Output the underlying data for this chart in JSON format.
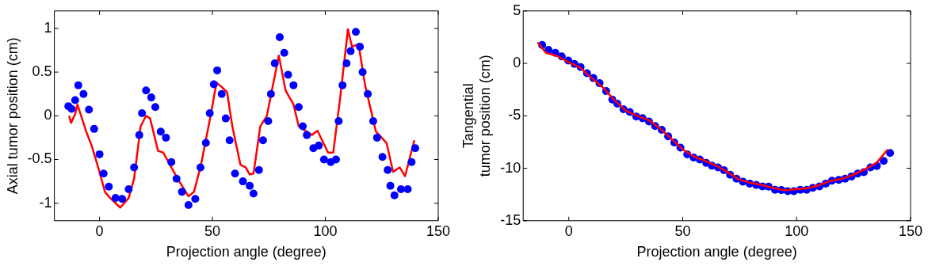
{
  "chart_data": [
    {
      "type": "line",
      "xlabel": "Projection angle (degree)",
      "ylabel": "Axial tumor position (cm)",
      "xlim": [
        -20,
        150
      ],
      "xticks": [
        0,
        50,
        100,
        150
      ],
      "ylim": [
        -1.2,
        1.2
      ],
      "yticks": [
        -1,
        -0.5,
        0,
        0.5,
        1
      ],
      "grid": false,
      "legend": false,
      "series": [
        {
          "type": "line",
          "color": "#ff0000",
          "marker": "none",
          "x": [
            -13.5,
            -12.6,
            -10.8,
            -9.8,
            -5.9,
            -3.5,
            -0.6,
            2.4,
            4.7,
            9.2,
            12.9,
            15.3,
            18.2,
            20.6,
            22.4,
            25.9,
            28.2,
            31.8,
            35.3,
            39.4,
            41.8,
            44.7,
            49.4,
            51.8,
            54.1,
            56.5,
            58.8,
            62.4,
            64.7,
            66.5,
            68.2,
            71.2,
            74.1,
            79.4,
            82.4,
            85.9,
            88.2,
            94.1,
            96.5,
            101.2,
            103.5,
            106.5,
            110,
            111.8,
            114.7,
            117.6,
            122.4,
            127.1,
            130,
            132.9,
            135.3,
            139.4
          ],
          "values": [
            0.0,
            -0.08,
            0.02,
            0.13,
            -0.18,
            -0.34,
            -0.59,
            -0.87,
            -0.94,
            -1.05,
            -0.94,
            -0.72,
            -0.12,
            0.0,
            -0.03,
            -0.4,
            -0.42,
            -0.59,
            -0.75,
            -0.92,
            -0.87,
            -0.59,
            0.03,
            0.38,
            0.33,
            0.27,
            -0.12,
            -0.56,
            -0.59,
            -0.67,
            -0.66,
            -0.12,
            0.0,
            0.69,
            0.29,
            0.13,
            -0.12,
            -0.22,
            -0.17,
            -0.42,
            -0.42,
            0.19,
            0.99,
            0.79,
            0.82,
            0.35,
            -0.18,
            -0.31,
            -0.64,
            -0.59,
            -0.69,
            -0.28
          ]
        },
        {
          "type": "scatter",
          "color": "#0000ff",
          "marker": "circle",
          "x": [
            -13.8,
            -12.4,
            -10.8,
            -9.4,
            -7.1,
            -4.7,
            -2.4,
            0,
            1.8,
            4.1,
            7.1,
            10,
            12.9,
            15.3,
            17.6,
            18.8,
            20.6,
            22.9,
            24.7,
            27.1,
            29.4,
            31.8,
            34.1,
            36.5,
            39.4,
            42.4,
            44.7,
            47.1,
            48.8,
            50.6,
            52.1,
            54.1,
            55.9,
            57.6,
            60,
            63.5,
            66.5,
            68.2,
            70.6,
            72.4,
            74.7,
            75.9,
            77.6,
            79.8,
            81.8,
            83.5,
            85.9,
            88.2,
            90,
            91.8,
            94.7,
            97.1,
            99.4,
            102.4,
            104.7,
            105.9,
            107.6,
            109.4,
            111.2,
            113.5,
            115.3,
            116.5,
            118.8,
            121.2,
            122.9,
            125.3,
            127.6,
            128.8,
            130.6,
            133.5,
            136.5,
            138.2,
            139.8
          ],
          "values": [
            0.11,
            0.08,
            0.18,
            0.35,
            0.25,
            0.07,
            -0.15,
            -0.44,
            -0.66,
            -0.81,
            -0.94,
            -0.95,
            -0.84,
            -0.59,
            -0.22,
            0.03,
            0.29,
            0.21,
            0.1,
            -0.18,
            -0.25,
            -0.53,
            -0.72,
            -0.87,
            -1.02,
            -0.95,
            -0.59,
            -0.31,
            0.03,
            0.36,
            0.52,
            0.25,
            -0.03,
            -0.28,
            -0.66,
            -0.75,
            -0.8,
            -0.89,
            -0.62,
            -0.28,
            -0.06,
            0.25,
            0.6,
            0.9,
            0.72,
            0.47,
            0.35,
            0.1,
            -0.12,
            -0.22,
            -0.37,
            -0.34,
            -0.5,
            -0.53,
            -0.5,
            -0.06,
            0.35,
            0.6,
            0.74,
            0.96,
            0.79,
            0.5,
            0.25,
            -0.06,
            -0.25,
            -0.47,
            -0.62,
            -0.8,
            -0.91,
            -0.84,
            -0.84,
            -0.53,
            -0.37
          ]
        }
      ]
    },
    {
      "type": "line",
      "xlabel": "Projection angle (degree)",
      "ylabel": "Tangential\ntumor position (cm)",
      "xlim": [
        -20,
        150
      ],
      "xticks": [
        0,
        50,
        100,
        150
      ],
      "ylim": [
        -15,
        5
      ],
      "yticks": [
        -15,
        -10,
        -5,
        0,
        5
      ],
      "grid": false,
      "legend": false,
      "series": [
        {
          "type": "scatter",
          "color": "#0000ff",
          "marker": "circle",
          "x": [
            -11.7,
            -8.9,
            -5.9,
            -3.1,
            -0.2,
            2.5,
            5.2,
            8.0,
            10.8,
            13.5,
            16.4,
            19.1,
            21.3,
            24.0,
            26.8,
            29.6,
            32.4,
            35.2,
            37.9,
            40.8,
            43.6,
            46.3,
            49.0,
            52.0,
            54.8,
            57.5,
            60.3,
            62.8,
            65.5,
            68.1,
            70.8,
            73.6,
            76.4,
            79.4,
            82.3,
            85.0,
            87.7,
            90.5,
            93.3,
            96.1,
            98.8,
            101.6,
            104.4,
            107.1,
            110,
            112.8,
            115.5,
            118.5,
            121.3,
            124.1,
            126.8,
            129.5,
            132.4,
            135.2,
            138.2,
            141
          ],
          "values": [
            1.75,
            1.29,
            1.0,
            0.67,
            0.27,
            -0.05,
            -0.35,
            -0.94,
            -1.4,
            -1.89,
            -2.64,
            -3.45,
            -3.85,
            -4.37,
            -4.64,
            -5.07,
            -5.23,
            -5.55,
            -5.98,
            -6.33,
            -6.95,
            -7.55,
            -8.03,
            -8.68,
            -8.98,
            -9.16,
            -9.49,
            -9.76,
            -9.92,
            -10.19,
            -10.62,
            -11.0,
            -11.27,
            -11.46,
            -11.59,
            -11.73,
            -11.75,
            -12.05,
            -12.08,
            -12.18,
            -12.18,
            -12.05,
            -12.05,
            -11.86,
            -11.73,
            -11.46,
            -11.19,
            -11.11,
            -11.0,
            -10.78,
            -10.51,
            -10.38,
            -9.92,
            -9.78,
            -9.3,
            -8.54
          ]
        },
        {
          "type": "line",
          "color": "#ff0000",
          "marker": "none",
          "x": [
            -13.7,
            -10,
            -5,
            0,
            5,
            10,
            15,
            20,
            25,
            30,
            35,
            40,
            45,
            50,
            55,
            60,
            65,
            70,
            75,
            80,
            85,
            90,
            95,
            100,
            105,
            110,
            115,
            120,
            125,
            130,
            135,
            140
          ],
          "values": [
            2.0,
            1.0,
            0.7,
            0.1,
            -0.4,
            -1.4,
            -2.3,
            -3.5,
            -4.5,
            -5.0,
            -5.4,
            -6.2,
            -7.2,
            -8.2,
            -8.9,
            -9.3,
            -9.8,
            -10.4,
            -11.1,
            -11.4,
            -11.6,
            -11.9,
            -12.1,
            -12.0,
            -11.9,
            -11.6,
            -11.2,
            -11.0,
            -10.6,
            -10.1,
            -9.5,
            -8.2
          ]
        }
      ]
    }
  ]
}
